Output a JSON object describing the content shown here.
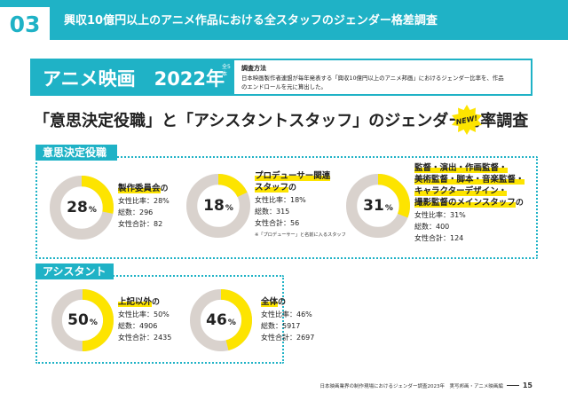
{
  "header": {
    "section_no": "03",
    "title": "興収10億円以上のアニメ作品における全スタッフのジェンダー格差調査"
  },
  "anime_box": {
    "title": "アニメ映画　2022年",
    "side_note": "全5本",
    "method_title": "調査方法",
    "method_text": "日本映画製作者連盟が毎年発表する「興収10億円以上のアニメ邦画」におけるジェンダー比率を、作品のエンドロールを元に算出した。"
  },
  "section_title": "「意思決定役職」と「アシスタントスタッフ」のジェンダー比率調査",
  "new_badge": "NEW!",
  "groups": {
    "decision": {
      "label": "意思決定役職"
    },
    "assistant": {
      "label": "アシスタント"
    }
  },
  "colors": {
    "accent": "#1fb2c6",
    "highlight": "#fde400",
    "ring": "#d9d2cd"
  },
  "stats": [
    {
      "id": "committee",
      "pct_value": 28,
      "pct_label": "28",
      "pct_unit": "%",
      "name_lines": [
        "製作委員会"
      ],
      "particle": "の",
      "lines": [
        "女性比率：28%",
        "総数：296",
        "女性合計：82"
      ],
      "note": ""
    },
    {
      "id": "producer",
      "pct_value": 18,
      "pct_label": "18",
      "pct_unit": "%",
      "name_lines": [
        "プロデューサー関連",
        "スタッフ"
      ],
      "particle": "の",
      "lines": [
        "女性比率：18%",
        "総数：315",
        "女性合計：56"
      ],
      "note": "※「プロデューサー」と名前に入るスタッフ"
    },
    {
      "id": "director",
      "pct_value": 31,
      "pct_label": "31",
      "pct_unit": "%",
      "name_lines": [
        "監督・演出・作画監督・",
        "美術監督・脚本・音楽監督・",
        "キャラクターデザイン・",
        "撮影監督のメインスタッフ"
      ],
      "particle": "の",
      "lines": [
        "女性比率：31%",
        "総数：400",
        "女性合計：124"
      ],
      "note": ""
    },
    {
      "id": "others",
      "pct_value": 50,
      "pct_label": "50",
      "pct_unit": "%",
      "name_lines": [
        "上記以外"
      ],
      "particle": "の",
      "lines": [
        "女性比率：50%",
        "総数：4906",
        "女性合計：2435"
      ],
      "note": ""
    },
    {
      "id": "total",
      "pct_value": 46,
      "pct_label": "46",
      "pct_unit": "%",
      "name_lines": [
        "全体"
      ],
      "particle": "の",
      "lines": [
        "女性比率：46%",
        "総数：5917",
        "女性合計：2697"
      ],
      "note": ""
    }
  ],
  "footer": {
    "text": "日本映画業界の制作現場におけるジェンダー調査2023年　実写邦画・アニメ映画編",
    "page": "15"
  }
}
